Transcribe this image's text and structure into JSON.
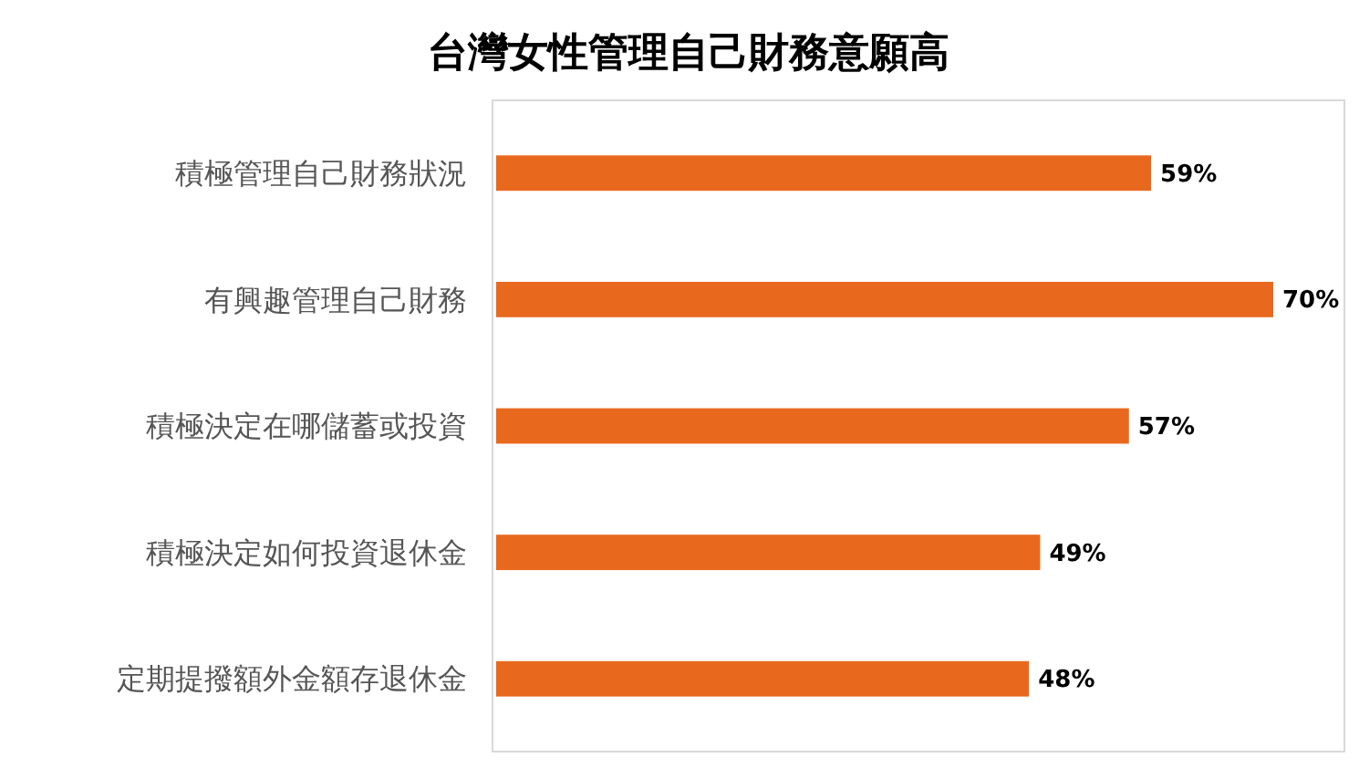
{
  "chart_data": {
    "type": "bar",
    "orientation": "horizontal",
    "title": "台灣女性管理自己財務意願高",
    "categories": [
      "積極管理自己財務狀況",
      "有興趣管理自己財務",
      "積極決定在哪儲蓄或投資",
      "積極決定如何投資退休金",
      "定期提撥額外金額存退休金"
    ],
    "values": [
      59,
      70,
      57,
      49,
      48
    ],
    "value_labels": [
      "59%",
      "70%",
      "57%",
      "49%",
      "48%"
    ],
    "color": "#e8691e"
  }
}
